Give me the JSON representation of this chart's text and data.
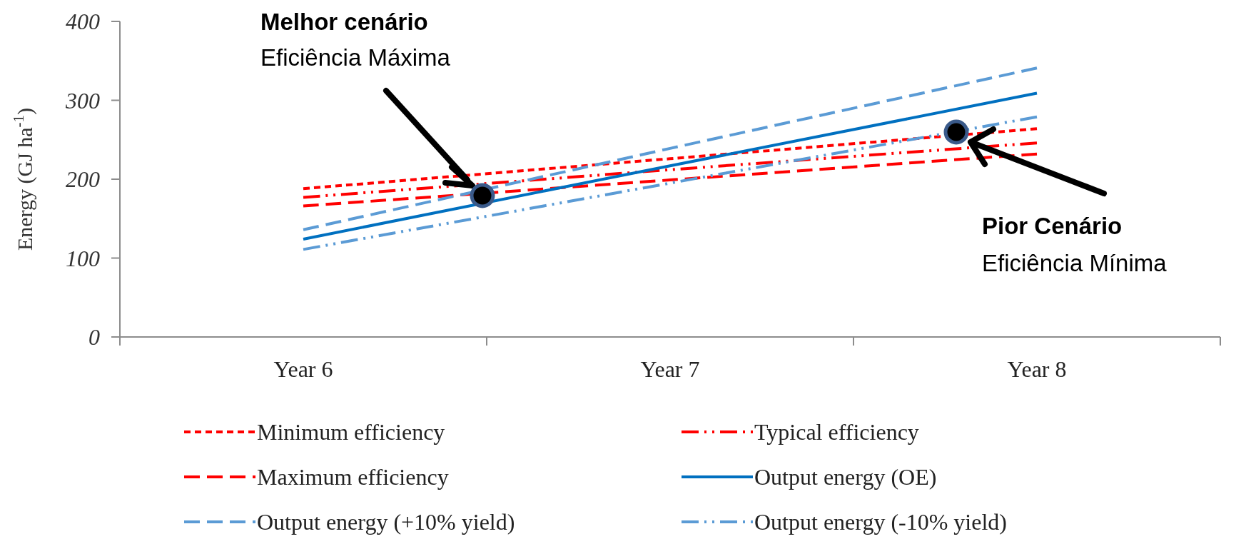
{
  "chart_data": {
    "type": "line",
    "ylabel": "Energy  (GJ ha$^{-1}$)",
    "categories": [
      "Year 6",
      "Year 7",
      "Year 8"
    ],
    "ylim": [
      0,
      400
    ],
    "yticks": [
      0,
      100,
      200,
      300,
      400
    ],
    "grid": false,
    "legend": "bottom",
    "marker": "none",
    "series": [
      {
        "name": "Minimum efficiency",
        "color": "#ff0000",
        "line_style": "dotted",
        "values": [
          188,
          226,
          264
        ]
      },
      {
        "name": "Typical efficiency",
        "color": "#ff0000",
        "line_style": "dashdot",
        "values": [
          177,
          212,
          246
        ]
      },
      {
        "name": "Maximum efficiency",
        "color": "#ff0000",
        "line_style": "dashed",
        "values": [
          166,
          199,
          232
        ]
      },
      {
        "name": "Output energy (OE)",
        "color": "#0070c0",
        "line_style": "solid",
        "values": [
          124,
          217,
          309
        ]
      },
      {
        "name": "Output energy (+10% yield)",
        "color": "#5b9bd5",
        "line_style": "dashed",
        "values": [
          136,
          239,
          341
        ]
      },
      {
        "name": "Output energy (-10% yield)",
        "color": "#5b9bd5",
        "line_style": "dashdot",
        "values": [
          111,
          195,
          279
        ]
      }
    ],
    "annotations": [
      "Melhor cenário",
      "Eficiência Máxima",
      "Pior Cenário",
      "Eficiência Mínima"
    ]
  }
}
